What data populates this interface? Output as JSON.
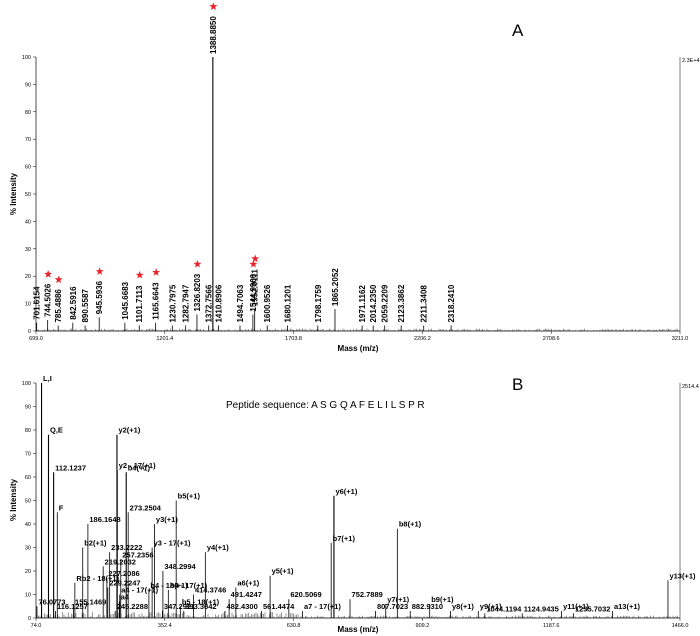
{
  "chart_data": [
    {
      "panel": "A",
      "type": "line",
      "xlabel": "Mass (m/z)",
      "ylabel": "% Intensity",
      "xlim": [
        699.0,
        3211.0
      ],
      "ylim": [
        0,
        100
      ],
      "x_ticks": [
        "699.0",
        "1201.4",
        "1703.8",
        "2206.2",
        "2708.6",
        "3211.0"
      ],
      "y_ticks": [
        "0",
        "10",
        "20",
        "30",
        "40",
        "50",
        "60",
        "70",
        "80",
        "90",
        "100"
      ],
      "right_scale_label": "2.3E+4",
      "peaks": [
        {
          "mz": 701.6154,
          "label": "701.6154",
          "intensity": 3,
          "star": false
        },
        {
          "mz": 744.5026,
          "label": "744.5026",
          "intensity": 4,
          "star": true
        },
        {
          "mz": 785.4886,
          "label": "785.4886",
          "intensity": 2,
          "star": true
        },
        {
          "mz": 842.5916,
          "label": "842.5916",
          "intensity": 3,
          "star": false
        },
        {
          "mz": 890.5587,
          "label": "890.5587",
          "intensity": 2,
          "star": false
        },
        {
          "mz": 945.5936,
          "label": "945.5936",
          "intensity": 5,
          "star": true
        },
        {
          "mz": 1045.6683,
          "label": "1045.6683",
          "intensity": 3,
          "star": false
        },
        {
          "mz": 1101.7113,
          "label": "1101.7113",
          "intensity": 2,
          "star": true
        },
        {
          "mz": 1165.6643,
          "label": "1165.6643",
          "intensity": 3,
          "star": true
        },
        {
          "mz": 1230.7975,
          "label": "1230.7975",
          "intensity": 2,
          "star": false
        },
        {
          "mz": 1282.7947,
          "label": "1282.7947",
          "intensity": 2,
          "star": false
        },
        {
          "mz": 1326.8203,
          "label": "1326.8203",
          "intensity": 6,
          "star": true
        },
        {
          "mz": 1372.7566,
          "label": "1372.7566",
          "intensity": 2,
          "star": false
        },
        {
          "mz": 1388.885,
          "label": "1388.8850",
          "intensity": 100,
          "star": true
        },
        {
          "mz": 1410.8906,
          "label": "1410.8906",
          "intensity": 2,
          "star": false
        },
        {
          "mz": 1494.7063,
          "label": "1494.7063",
          "intensity": 2,
          "star": false
        },
        {
          "mz": 1544.99,
          "label": "1544.9900",
          "intensity": 6,
          "star": true
        },
        {
          "mz": 1552.0111,
          "label": "1552.0111",
          "intensity": 8,
          "star": true
        },
        {
          "mz": 1600.9526,
          "label": "1600.9526",
          "intensity": 2,
          "star": false
        },
        {
          "mz": 1680.1201,
          "label": "1680.1201",
          "intensity": 2,
          "star": false
        },
        {
          "mz": 1798.1759,
          "label": "1798.1759",
          "intensity": 2,
          "star": false
        },
        {
          "mz": 1865.2052,
          "label": "1865.2052",
          "intensity": 8,
          "star": false
        },
        {
          "mz": 1971.1162,
          "label": "1971.1162",
          "intensity": 2,
          "star": false
        },
        {
          "mz": 2014.235,
          "label": "2014.2350",
          "intensity": 2,
          "star": false
        },
        {
          "mz": 2059.2209,
          "label": "2059.2209",
          "intensity": 2,
          "star": false
        },
        {
          "mz": 2123.3862,
          "label": "2123.3862",
          "intensity": 2,
          "star": false
        },
        {
          "mz": 2211.3408,
          "label": "2211.3408",
          "intensity": 2,
          "star": false
        },
        {
          "mz": 2318.241,
          "label": "2318.2410",
          "intensity": 2,
          "star": false
        }
      ]
    },
    {
      "panel": "B",
      "type": "line",
      "title": "Peptide sequence: A S G Q A F E L I L S P R",
      "xlabel": "Mass (m/z)",
      "ylabel": "% Intensity",
      "xlim": [
        74.0,
        1466.0
      ],
      "ylim": [
        0,
        100
      ],
      "x_ticks": [
        "74.0",
        "352.4",
        "630.8",
        "909.2",
        "1187.6",
        "1466.0"
      ],
      "y_ticks": [
        "0",
        "10",
        "20",
        "30",
        "40",
        "50",
        "60",
        "70",
        "80",
        "90",
        "100"
      ],
      "right_scale_label": "2514.4",
      "peaks": [
        {
          "mz": 86,
          "label": "L,I",
          "intensity": 100
        },
        {
          "mz": 76.0773,
          "label": "76.0773",
          "intensity": 5
        },
        {
          "mz": 101,
          "label": "Q,E",
          "intensity": 78
        },
        {
          "mz": 112.1237,
          "label": "112.1237",
          "intensity": 62
        },
        {
          "mz": 116.1257,
          "label": "116.1257",
          "intensity": 3
        },
        {
          "mz": 120,
          "label": "F",
          "intensity": 45
        },
        {
          "mz": 155.1469,
          "label": "155.1469",
          "intensity": 5
        },
        {
          "mz": 186.1648,
          "label": "186.1648",
          "intensity": 40
        },
        {
          "mz": 158,
          "label": "Rb2 - 18(+1)",
          "intensity": 15
        },
        {
          "mz": 175,
          "label": "b2(+1)",
          "intensity": 30
        },
        {
          "mz": 219.2032,
          "label": "219.2032",
          "intensity": 22
        },
        {
          "mz": 227.2086,
          "label": "227.2086",
          "intensity": 17
        },
        {
          "mz": 229.2247,
          "label": "229.2247",
          "intensity": 13
        },
        {
          "mz": 233.2222,
          "label": "233.2222",
          "intensity": 28
        },
        {
          "mz": 245.2288,
          "label": "245.2288",
          "intensity": 3
        },
        {
          "mz": 249,
          "label": "y2(+1)",
          "intensity": 78
        },
        {
          "mz": 249.5,
          "label": "y2 - 17(+1)",
          "intensity": 63
        },
        {
          "mz": 257.2356,
          "label": "257.2356",
          "intensity": 25
        },
        {
          "mz": 273.2504,
          "label": "273.2504",
          "intensity": 45
        },
        {
          "mz": 255,
          "label": "a4 - 17(+1)",
          "intensity": 10
        },
        {
          "mz": 254,
          "label": "a4",
          "intensity": 7
        },
        {
          "mz": 269,
          "label": "b4(+1)",
          "intensity": 62
        },
        {
          "mz": 347.2921,
          "label": "347.2921",
          "intensity": 3
        },
        {
          "mz": 318,
          "label": "b4 - 18(+1)",
          "intensity": 12
        },
        {
          "mz": 330,
          "label": "y3(+1)",
          "intensity": 40
        },
        {
          "mz": 325,
          "label": "y3 - 17(+1)",
          "intensity": 30
        },
        {
          "mz": 348.2994,
          "label": "348.2994",
          "intensity": 20
        },
        {
          "mz": 360,
          "label": "b4 - 17(+1)",
          "intensity": 12
        },
        {
          "mz": 377,
          "label": "b5(+1)",
          "intensity": 50
        },
        {
          "mz": 414.3746,
          "label": "414.3746",
          "intensity": 10
        },
        {
          "mz": 386,
          "label": "b5 - 18(+1)",
          "intensity": 5
        },
        {
          "mz": 393.3642,
          "label": "393.3642",
          "intensity": 3
        },
        {
          "mz": 440,
          "label": "y4(+1)",
          "intensity": 28
        },
        {
          "mz": 482.43,
          "label": "482.4300",
          "intensity": 3
        },
        {
          "mz": 491.4247,
          "label": "491.4247",
          "intensity": 8
        },
        {
          "mz": 506,
          "label": "a6(+1)",
          "intensity": 13
        },
        {
          "mz": 561.4474,
          "label": "561.4474",
          "intensity": 3
        },
        {
          "mz": 580,
          "label": "y5(+1)",
          "intensity": 18
        },
        {
          "mz": 620.5069,
          "label": "620.5069",
          "intensity": 8
        },
        {
          "mz": 650,
          "label": "a7 - 17(+1)",
          "intensity": 3
        },
        {
          "mz": 712,
          "label": "b7(+1)",
          "intensity": 32
        },
        {
          "mz": 718,
          "label": "y6(+1)",
          "intensity": 52
        },
        {
          "mz": 752.7889,
          "label": "752.7889",
          "intensity": 8
        },
        {
          "mz": 807.7023,
          "label": "807.7023",
          "intensity": 3
        },
        {
          "mz": 830,
          "label": "y7(+1)",
          "intensity": 6
        },
        {
          "mz": 855,
          "label": "b8(+1)",
          "intensity": 38
        },
        {
          "mz": 882.931,
          "label": "882.9310",
          "intensity": 3
        },
        {
          "mz": 925,
          "label": "b9(+1)",
          "intensity": 6
        },
        {
          "mz": 970,
          "label": "y8(+1)",
          "intensity": 3
        },
        {
          "mz": 1030,
          "label": "y9(+1)",
          "intensity": 3
        },
        {
          "mz": 1044.1194,
          "label": "1044.1194",
          "intensity": 2
        },
        {
          "mz": 1124.9435,
          "label": "1124.9435",
          "intensity": 2
        },
        {
          "mz": 1210,
          "label": "y11(+1)",
          "intensity": 3
        },
        {
          "mz": 1235.7032,
          "label": "1235.7032",
          "intensity": 2
        },
        {
          "mz": 1320,
          "label": "a13(+1)",
          "intensity": 3
        },
        {
          "mz": 1440,
          "label": "y13(+1)",
          "intensity": 16
        }
      ]
    }
  ]
}
